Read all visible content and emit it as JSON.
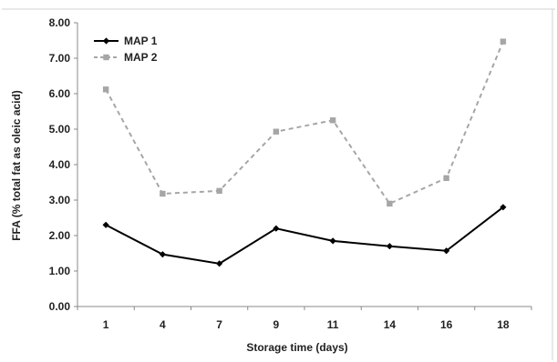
{
  "chart_data": {
    "type": "line",
    "categories": [
      "1",
      "4",
      "7",
      "9",
      "11",
      "14",
      "16",
      "18"
    ],
    "series": [
      {
        "name": "MAP 1",
        "values": [
          2.3,
          1.47,
          1.21,
          2.2,
          1.85,
          1.7,
          1.57,
          2.8
        ],
        "color": "#000000",
        "dash": "solid",
        "marker": "diamond"
      },
      {
        "name": "MAP 2",
        "values": [
          6.12,
          3.18,
          3.26,
          4.93,
          5.25,
          2.9,
          3.62,
          7.47
        ],
        "color": "#a6a6a6",
        "dash": "dashed",
        "marker": "square"
      }
    ],
    "xlabel": "Storage time (days)",
    "ylabel": "FFA (% total fat as oleic acid)",
    "ylim": [
      0,
      8
    ],
    "yticks": [
      "0.00",
      "1.00",
      "2.00",
      "3.00",
      "4.00",
      "5.00",
      "6.00",
      "7.00",
      "8.00"
    ],
    "grid": false,
    "legend": "top-left"
  }
}
